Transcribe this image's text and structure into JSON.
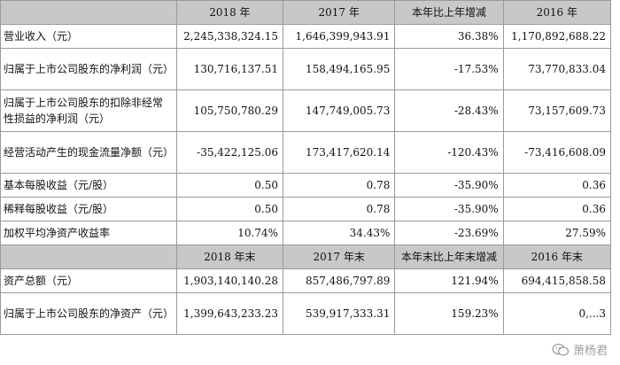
{
  "headers_top": [
    "",
    "2018 年",
    "2017 年",
    "本年比上年增减",
    "2016 年"
  ],
  "rows_top": [
    {
      "label": "营业收入（元）",
      "v2018": "2,245,338,324.15",
      "v2017": "1,646,399,943.91",
      "change": "36.38%",
      "v2016": "1,170,892,688.22",
      "tall": false
    },
    {
      "label": "归属于上市公司股东的净利润（元）",
      "v2018": "130,716,137.51",
      "v2017": "158,494,165.95",
      "change": "-17.53%",
      "v2016": "73,770,833.04",
      "tall": true
    },
    {
      "label": "归属于上市公司股东的扣除非经常性损益的净利润（元）",
      "v2018": "105,750,780.29",
      "v2017": "147,749,005.73",
      "change": "-28.43%",
      "v2016": "73,157,609.73",
      "tall": true
    },
    {
      "label": "经营活动产生的现金流量净额（元）",
      "v2018": "-35,422,125.06",
      "v2017": "173,417,620.14",
      "change": "-120.43%",
      "v2016": "-73,416,608.09",
      "tall": true
    },
    {
      "label": "基本每股收益（元/股）",
      "v2018": "0.50",
      "v2017": "0.78",
      "change": "-35.90%",
      "v2016": "0.36",
      "tall": false
    },
    {
      "label": "稀释每股收益（元/股）",
      "v2018": "0.50",
      "v2017": "0.78",
      "change": "-35.90%",
      "v2016": "0.36",
      "tall": false
    },
    {
      "label": "加权平均净资产收益率",
      "v2018": "10.74%",
      "v2017": "34.43%",
      "change": "-23.69%",
      "v2016": "27.59%",
      "tall": false
    }
  ],
  "headers_bottom": [
    "",
    "2018 年末",
    "2017 年末",
    "本年末比上年末增减",
    "2016 年末"
  ],
  "rows_bottom": [
    {
      "label": "资产总额（元）",
      "v2018": "1,903,140,140.28",
      "v2017": "857,486,797.89",
      "change": "121.94%",
      "v2016": "694,415,858.58",
      "tall": false
    },
    {
      "label": "归属于上市公司股东的净资产（元）",
      "v2018": "1,399,643,233.23",
      "v2017": "539,917,333.31",
      "change": "159.23%",
      "v2016": "0,...3",
      "tall": true
    }
  ],
  "watermark": {
    "text": "萧杨君",
    "icon": "wechat-icon"
  }
}
